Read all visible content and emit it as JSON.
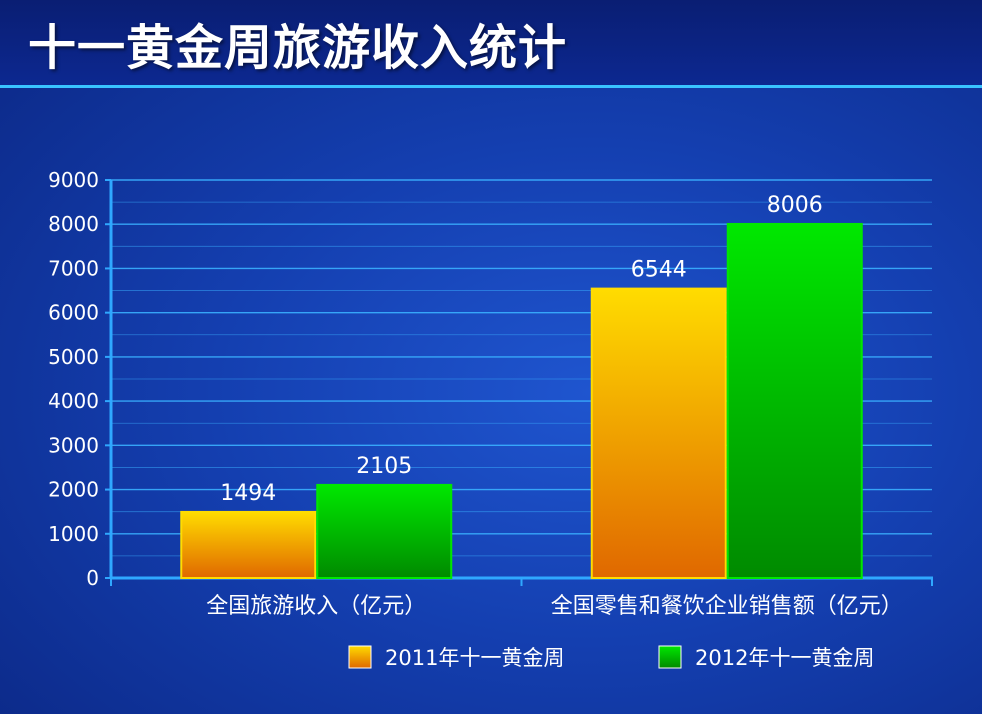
{
  "title": "十一黄金周旅游收入统计",
  "colors": {
    "background": "#143fb0",
    "header_rule": "#39c4ff",
    "gridline": "#3ab0ff",
    "axis": "#2fa8ff",
    "series_2011_top": "#ffdc00",
    "series_2011_bottom": "#e06800",
    "series_2012_top": "#00e800",
    "series_2012_bottom": "#008a00"
  },
  "chart_data": {
    "type": "bar",
    "title": "十一黄金周旅游收入统计",
    "categories": [
      "全国旅游收入（亿元）",
      "全国零售和餐饮企业销售额（亿元）"
    ],
    "series": [
      {
        "name": "2011年十一黄金周",
        "values": [
          1494,
          6544
        ]
      },
      {
        "name": "2012年十一黄金周",
        "values": [
          2105,
          8006
        ]
      }
    ],
    "ylim": [
      0,
      9000
    ],
    "yticks": [
      0,
      1000,
      2000,
      3000,
      4000,
      5000,
      6000,
      7000,
      8000,
      9000
    ],
    "grid": true,
    "legend": "bottom-right",
    "data_labels": true
  }
}
